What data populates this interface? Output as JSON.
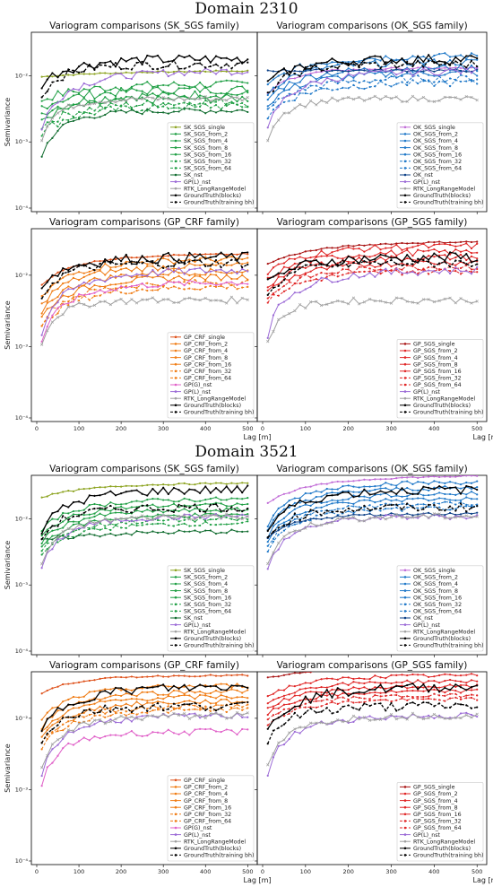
{
  "colors": {
    "sk_single": "#8ca31f",
    "sk": "#1f9f44",
    "sk_nst": "#0f6b2e",
    "ok": "#1f78c8",
    "ok_nst": "#0b3f86",
    "ok_single": "#c06ad6",
    "crf": "#f07c14",
    "crf_single": "#de4f18",
    "gps": "#e02525",
    "gps_nst": "#a81212",
    "purple": "#9b6ad6",
    "pink": "#e060c8",
    "gray": "#a0a0a0",
    "black": "#000000"
  },
  "domains": [
    {
      "title": "Domain 2310",
      "panels": [
        {
          "title": "Variogram comparisons (SK_SGS family)",
          "legend": [
            "SK_SGS_single",
            "SK_SGS_from_2",
            "SK_SGS_from_4",
            "SK_SGS_from_8",
            "SK_SGS_from_16",
            "SK_SGS_from_32",
            "SK_SGS_from_64",
            "SK_nst",
            "GP(L)_nst",
            "RTK_LongRangeModel",
            "GroundTruth(blocks)",
            "GroundTruth(training bh)"
          ]
        },
        {
          "title": "Variogram comparisons (OK_SGS family)",
          "legend": [
            "OK_SGS_single",
            "OK_SGS_from_2",
            "OK_SGS_from_4",
            "OK_SGS_from_8",
            "OK_SGS_from_16",
            "OK_SGS_from_32",
            "OK_SGS_from_64",
            "OK_nst",
            "GP(L)_nst",
            "RTK_LongRangeModel",
            "GroundTruth(blocks)",
            "GroundTruth(training bh)"
          ]
        },
        {
          "title": "Variogram comparisons (GP_CRF family)",
          "legend": [
            "GP_CRF_single",
            "GP_CRF_from_2",
            "GP_CRF_from_4",
            "GP_CRF_from_8",
            "GP_CRF_from_16",
            "GP_CRF_from_32",
            "GP_CRF_from_64",
            "GP(G)_nst",
            "GP(L)_nst",
            "RTK_LongRangeModel",
            "GroundTruth(blocks)",
            "GroundTruth(training bh)"
          ]
        },
        {
          "title": "Variogram comparisons (GP_SGS family)",
          "legend": [
            "GP_SGS_single",
            "GP_SGS_from_2",
            "GP_SGS_from_4",
            "GP_SGS_from_8",
            "GP_SGS_from_16",
            "GP_SGS_from_32",
            "GP_SGS_from_64",
            "GP(L)_nst",
            "RTK_LongRangeModel",
            "GroundTruth(blocks)",
            "GroundTruth(training bh)"
          ]
        }
      ]
    },
    {
      "title": "Domain 3521",
      "panels": [
        {
          "title": "Variogram comparisons (SK_SGS family)",
          "legend": [
            "SK_SGS_single",
            "SK_SGS_from_2",
            "SK_SGS_from_4",
            "SK_SGS_from_8",
            "SK_SGS_from_16",
            "SK_SGS_from_32",
            "SK_SGS_from_64",
            "SK_nst",
            "GP(L)_nst",
            "RTK_LongRangeModel",
            "GroundTruth(blocks)",
            "GroundTruth(training bh)"
          ]
        },
        {
          "title": "Variogram comparisons (OK_SGS family)",
          "legend": [
            "OK_SGS_single",
            "OK_SGS_from_2",
            "OK_SGS_from_4",
            "OK_SGS_from_8",
            "OK_SGS_from_16",
            "OK_SGS_from_32",
            "OK_SGS_from_64",
            "OK_nst",
            "GP(L)_nst",
            "RTK_LongRangeModel",
            "GroundTruth(blocks)",
            "GroundTruth(training bh)"
          ]
        },
        {
          "title": "Variogram comparisons (GP_CRF family)",
          "legend": [
            "GP_CRF_single",
            "GP_CRF_from_2",
            "GP_CRF_from_4",
            "GP_CRF_from_8",
            "GP_CRF_from_16",
            "GP_CRF_from_32",
            "GP_CRF_from_64",
            "GP(G)_nst",
            "GP(L)_nst",
            "RTK_LongRangeModel",
            "GroundTruth(blocks)",
            "GroundTruth(training bh)"
          ]
        },
        {
          "title": "Variogram comparisons (GP_SGS family)",
          "legend": [
            "GP_SGS_single",
            "GP_SGS_from_2",
            "GP_SGS_from_4",
            "GP_SGS_from_8",
            "GP_SGS_from_16",
            "GP_SGS_from_32",
            "GP_SGS_from_64",
            "GP(L)_nst",
            "RTK_LongRangeModel",
            "GroundTruth(blocks)",
            "GroundTruth(training bh)"
          ]
        }
      ]
    }
  ],
  "chart_data": {
    "type": "line",
    "xlabel": "Lag [m]",
    "ylabel": "Semivariance",
    "xlim": [
      0,
      510
    ],
    "ylim": [
      0.0001,
      0.04
    ],
    "yscale": "log",
    "x_ticks": [
      "0",
      "100",
      "200",
      "300",
      "400",
      "500"
    ],
    "y_ticks": [
      "10⁻⁴",
      "10⁻³",
      "10⁻²"
    ],
    "legend_position": "lower-right",
    "grid": false,
    "lags": [
      12,
      25,
      37,
      50,
      62,
      75,
      87,
      100,
      112,
      125,
      137,
      150,
      162,
      175,
      187,
      200,
      212,
      225,
      237,
      250,
      262,
      275,
      287,
      300,
      312,
      325,
      337,
      350,
      362,
      375,
      387,
      400,
      412,
      425,
      437,
      450,
      462,
      475,
      487,
      500
    ],
    "approx_curves_2310": {
      "GroundTruth(blocks)": {
        "start": 0.006,
        "end": 0.018
      },
      "GroundTruth(training bh)": {
        "start": 0.003,
        "end": 0.016
      },
      "RTK_LongRangeModel": {
        "start": 0.0004,
        "end": 0.0045
      },
      "GP(L)_nst": {
        "start": 0.0004,
        "end": 0.012
      },
      "SK_SGS_single": {
        "start": 0.0095,
        "end": 0.012
      },
      "OK_nst": {
        "start": 0.012,
        "end": 0.012
      },
      "GP_CRF_single": {
        "start": 0.006,
        "end": 0.02
      },
      "GP_SGS_single": {
        "start": 0.013,
        "end": 0.03
      }
    },
    "approx_curves_3521": {
      "GroundTruth(blocks)": {
        "start": 0.004,
        "end": 0.03
      },
      "GroundTruth(training bh)": {
        "start": 0.0035,
        "end": 0.015
      },
      "RTK_LongRangeModel": {
        "start": 0.0008,
        "end": 0.012
      },
      "SK_SGS_single": {
        "start": 0.02,
        "end": 0.035
      },
      "OK_SGS_single": {
        "start": 0.015,
        "end": 0.045
      },
      "GP_CRF_single": {
        "start": 0.02,
        "end": 0.04
      },
      "GP_SGS_single": {
        "start": 0.035,
        "end": 0.055
      },
      "GP(G)_nst": {
        "start": 0.00025,
        "end": 0.0065
      }
    }
  }
}
